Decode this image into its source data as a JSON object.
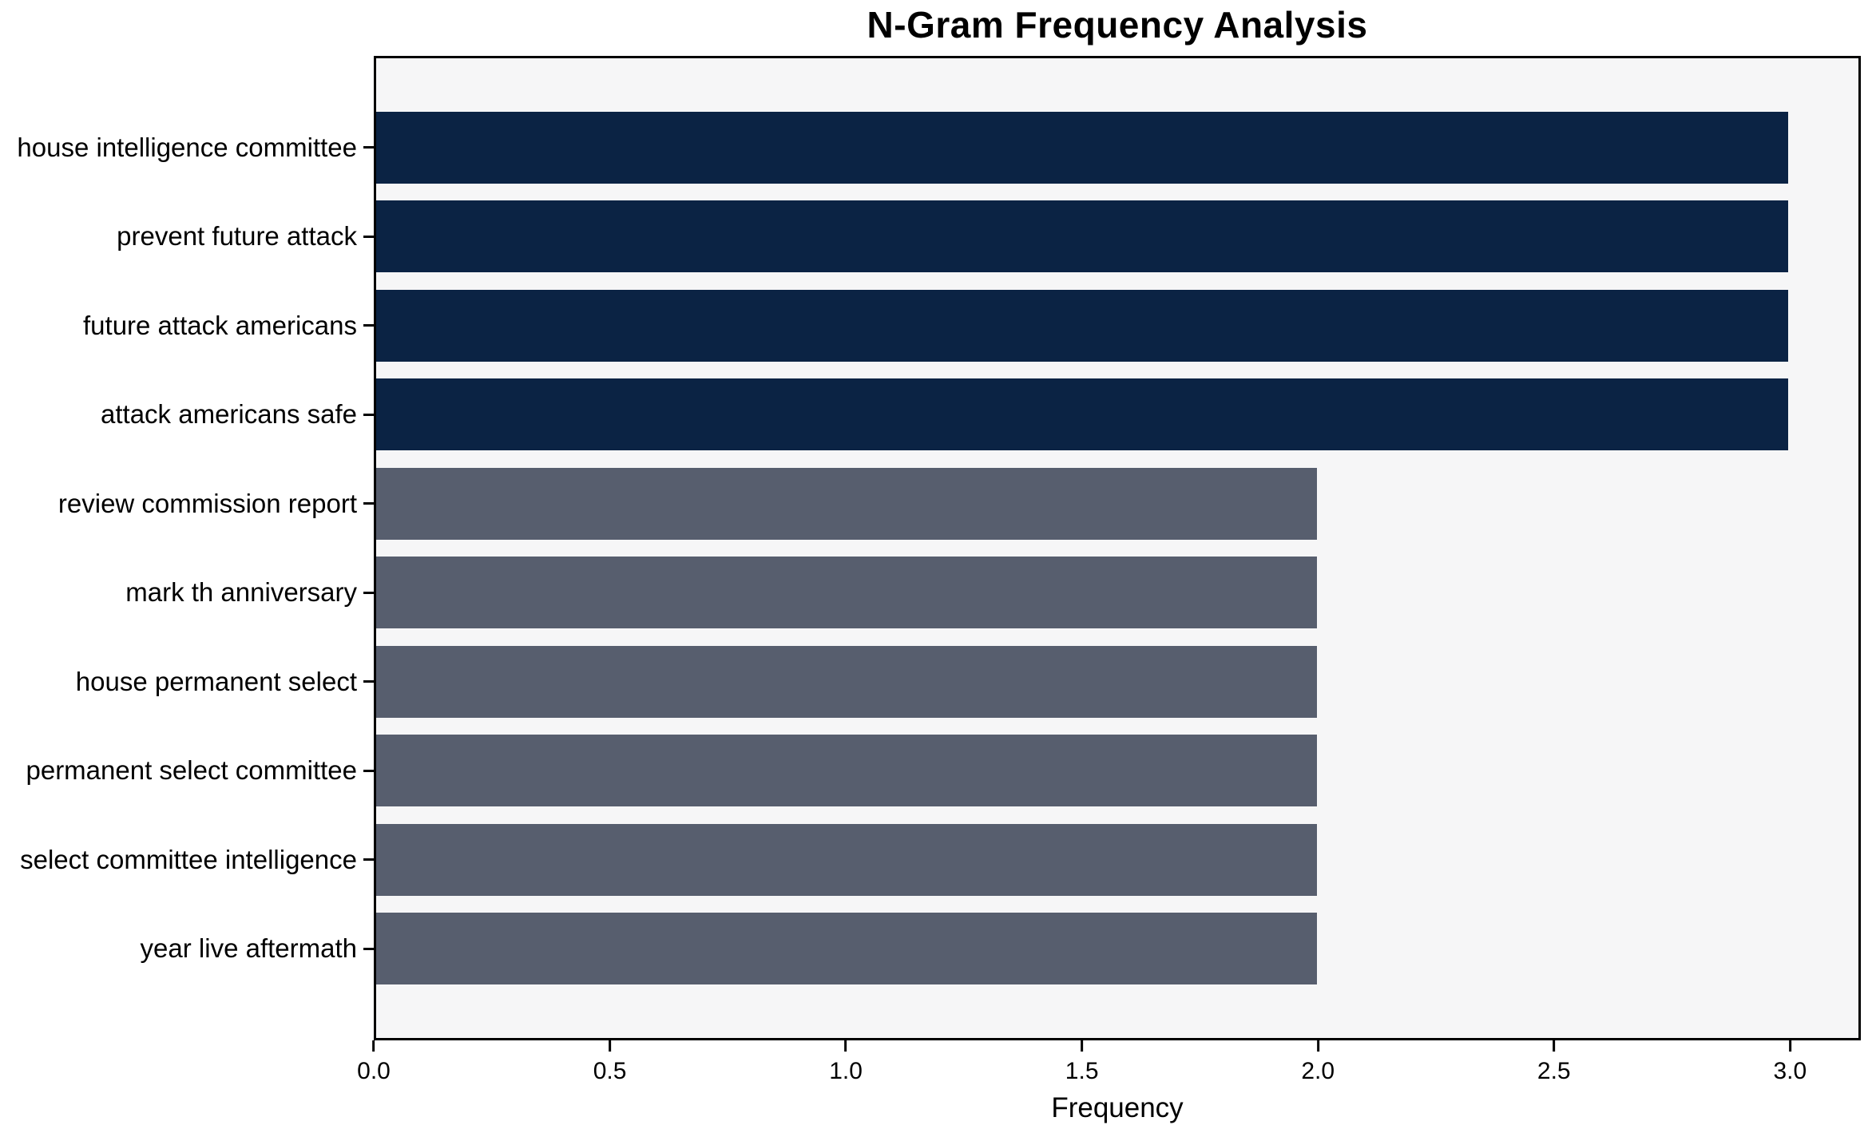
{
  "figure": {
    "title": "N-Gram Frequency Analysis",
    "xlabel": "Frequency",
    "background_color": "#ffffff",
    "plot_background_color": "#f6f6f7",
    "spine_color": "#000000"
  },
  "chart_data": {
    "type": "bar",
    "orientation": "horizontal",
    "title": "N-Gram Frequency Analysis",
    "xlabel": "Frequency",
    "ylabel": "",
    "categories": [
      "house intelligence committee",
      "prevent future attack",
      "future attack americans",
      "attack americans safe",
      "review commission report",
      "mark th anniversary",
      "house permanent select",
      "permanent select committee",
      "select committee intelligence",
      "year live aftermath"
    ],
    "values": [
      3,
      3,
      3,
      3,
      2,
      2,
      2,
      2,
      2,
      2
    ],
    "bar_colors": [
      "#0b2344",
      "#0b2344",
      "#0b2344",
      "#0b2344",
      "#575e6e",
      "#575e6e",
      "#575e6e",
      "#575e6e",
      "#575e6e",
      "#575e6e"
    ],
    "palette": {
      "frequency_3": "#0b2344",
      "frequency_2": "#575e6e"
    },
    "xlim": [
      0,
      3.15
    ],
    "x_ticks": [
      0.0,
      0.5,
      1.0,
      1.5,
      2.0,
      2.5,
      3.0
    ],
    "x_tick_labels": [
      "0.0",
      "0.5",
      "1.0",
      "1.5",
      "2.0",
      "2.5",
      "3.0"
    ],
    "grid": false,
    "legend": null
  }
}
